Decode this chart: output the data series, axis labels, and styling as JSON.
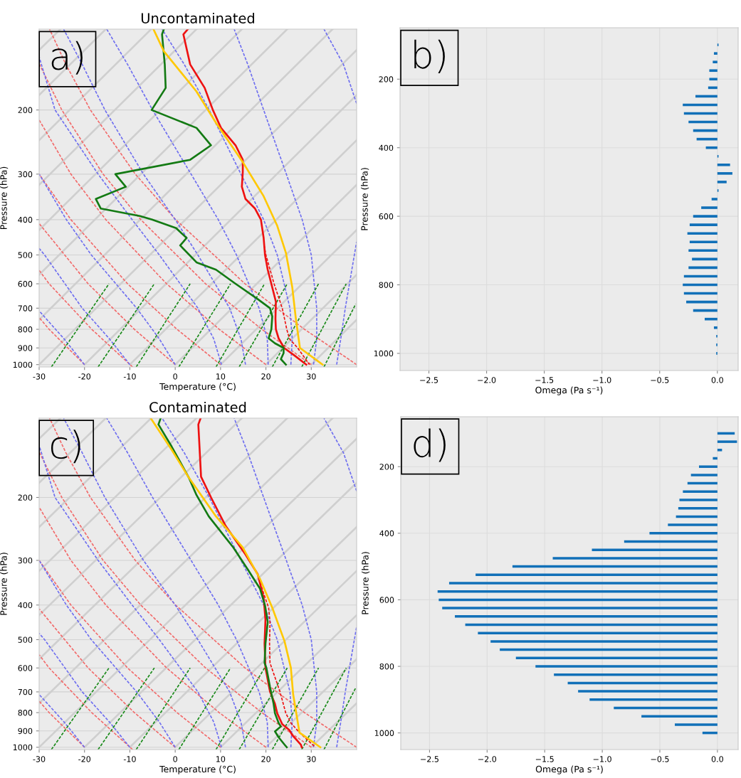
{
  "chart_data": [
    {
      "type": "line",
      "title": "Uncontaminated",
      "xlabel": "Temperature (°C)",
      "ylabel": "Pressure (hPa)",
      "annotations": [
        "a)"
      ],
      "log": "y",
      "xlim": [
        -30,
        40
      ],
      "ylim": [
        1015,
        120
      ],
      "xticks": [
        -30,
        -20,
        -10,
        0,
        10,
        20,
        30
      ],
      "yticks": [
        200,
        300,
        400,
        500,
        600,
        700,
        800,
        900,
        1000
      ],
      "grid": "y",
      "marker": "none",
      "series": [
        {
          "color": "#cfcfcf",
          "line_style": "solid",
          "x": [
            -30,
            -25.3
          ],
          "values": [
            137,
            120
          ]
        },
        {
          "color": "#cfcfcf",
          "line_style": "solid",
          "x": [
            -30,
            -15.3
          ],
          "values": [
            182,
            120
          ]
        },
        {
          "color": "#cfcfcf",
          "line_style": "solid",
          "x": [
            -30,
            -5.3
          ],
          "values": [
            242,
            120
          ]
        },
        {
          "color": "#cfcfcf",
          "line_style": "solid",
          "x": [
            -30,
            4.7
          ],
          "values": [
            321,
            120
          ]
        },
        {
          "color": "#cfcfcf",
          "line_style": "solid",
          "x": [
            -30,
            14.7
          ],
          "values": [
            427,
            120
          ]
        },
        {
          "color": "#cfcfcf",
          "line_style": "solid",
          "x": [
            -30,
            24.7
          ],
          "values": [
            567,
            120
          ]
        },
        {
          "color": "#cfcfcf",
          "line_style": "solid",
          "x": [
            -30,
            34.7
          ],
          "values": [
            753,
            120
          ]
        },
        {
          "color": "#cfcfcf",
          "line_style": "solid",
          "x": [
            -30,
            40
          ],
          "values": [
            1000,
            137
          ]
        },
        {
          "color": "#cfcfcf",
          "line_style": "solid",
          "x": [
            -20,
            40
          ],
          "values": [
            1000,
            182
          ]
        },
        {
          "color": "#cfcfcf",
          "line_style": "solid",
          "x": [
            -10,
            40
          ],
          "values": [
            1000,
            242
          ]
        },
        {
          "color": "#cfcfcf",
          "line_style": "solid",
          "x": [
            0,
            40
          ],
          "values": [
            1000,
            321
          ]
        },
        {
          "color": "#cfcfcf",
          "line_style": "solid",
          "x": [
            10,
            40
          ],
          "values": [
            1000,
            427
          ]
        },
        {
          "color": "#cfcfcf",
          "line_style": "solid",
          "x": [
            20,
            40
          ],
          "values": [
            1000,
            567
          ]
        },
        {
          "color": "#cfcfcf",
          "line_style": "solid",
          "x": [
            30,
            40
          ],
          "values": [
            1000,
            753
          ]
        },
        {
          "color": "#f26b6b",
          "line_style": "dashed",
          "x": [
            -20,
            -27.8,
            -30
          ],
          "values": [
            1000,
            800,
            743
          ]
        },
        {
          "color": "#f26b6b",
          "line_style": "dashed",
          "x": [
            -9.4,
            -18.4,
            -27.8,
            -30
          ],
          "values": [
            1015,
            800,
            600,
            551
          ]
        },
        {
          "color": "#f26b6b",
          "line_style": "dashed",
          "x": [
            0,
            -9.0,
            -19.2,
            -30
          ],
          "values": [
            1000,
            800,
            600,
            410
          ]
        },
        {
          "color": "#f26b6b",
          "line_style": "dashed",
          "x": [
            10,
            0.4,
            -10.5,
            -23.0,
            -30
          ],
          "values": [
            1000,
            800,
            600,
            400,
            300
          ]
        },
        {
          "color": "#f26b6b",
          "line_style": "dashed",
          "x": [
            20,
            9.7,
            -1.9,
            -15.3,
            -23.0,
            -30
          ],
          "values": [
            1000,
            800,
            600,
            400,
            300,
            213
          ]
        },
        {
          "color": "#f26b6b",
          "line_style": "dashed",
          "x": [
            30,
            19.1,
            6.7,
            -7.6,
            -15.9,
            -25.0,
            -29.9
          ],
          "values": [
            1000,
            800,
            600,
            400,
            300,
            200,
            150
          ]
        },
        {
          "color": "#f26b6b",
          "line_style": "dashed",
          "x": [
            40,
            28.5,
            15.4,
            0.1,
            -8.8,
            -18.7,
            -24.1,
            -27.7
          ],
          "values": [
            1000,
            800,
            600,
            400,
            300,
            200,
            150,
            120
          ]
        },
        {
          "color": "#6f6ff0",
          "line_style": "dashed",
          "x": [
            -20,
            -24.5,
            -30
          ],
          "values": [
            1000,
            850,
            712
          ]
        },
        {
          "color": "#6f6ff0",
          "line_style": "dashed",
          "x": [
            -10,
            -14.5,
            -20.5,
            -28.8,
            -30
          ],
          "values": [
            1000,
            850,
            700,
            500,
            480
          ]
        },
        {
          "color": "#6f6ff0",
          "line_style": "dashed",
          "x": [
            0,
            -3.5,
            -8.5,
            -18.5,
            -24,
            -30
          ],
          "values": [
            1000,
            850,
            700,
            500,
            400,
            300
          ]
        },
        {
          "color": "#6f6ff0",
          "line_style": "dashed",
          "x": [
            10.2,
            8.5,
            5.0,
            -3.5,
            -9.5,
            -17.0,
            -26.5,
            -30
          ],
          "values": [
            1000,
            850,
            700,
            500,
            400,
            300,
            200,
            143
          ]
        },
        {
          "color": "#6f6ff0",
          "line_style": "dashed",
          "x": [
            15.5,
            14.5,
            12.0,
            5.0,
            0,
            -7.0,
            -15.5,
            -20.5,
            -24.6
          ],
          "values": [
            1000,
            850,
            700,
            500,
            400,
            300,
            200,
            150,
            120
          ]
        },
        {
          "color": "#6f6ff0",
          "line_style": "dashed",
          "x": [
            20.5,
            20.3,
            18.5,
            13.5,
            9.5,
            3.5,
            -5.0,
            -10.5,
            -15.1
          ],
          "values": [
            1000,
            850,
            700,
            500,
            400,
            300,
            200,
            150,
            120
          ]
        },
        {
          "color": "#6f6ff0",
          "line_style": "dashed",
          "x": [
            25.5,
            25.8,
            25.3,
            22.5,
            19.5,
            14.5,
            7.5,
            2.0,
            -2.9
          ],
          "values": [
            1000,
            850,
            700,
            500,
            400,
            300,
            200,
            150,
            120
          ]
        },
        {
          "color": "#6f6ff0",
          "line_style": "dashed",
          "x": [
            30.5,
            31.2,
            31.2,
            30.0,
            28.0,
            24.5,
            19.5,
            16.0,
            13.0
          ],
          "values": [
            1000,
            850,
            700,
            500,
            400,
            300,
            200,
            150,
            120
          ]
        },
        {
          "color": "#6f6ff0",
          "line_style": "dashed",
          "x": [
            35.6,
            36.5,
            37.5,
            39.5,
            40
          ],
          "values": [
            1000,
            850,
            700,
            500,
            460
          ]
        },
        {
          "color": "#6f6ff0",
          "line_style": "dashed",
          "x": [
            40,
            37.1,
            32.8
          ],
          "values": [
            192,
            150,
            120
          ]
        },
        {
          "color": "#1a8a1a",
          "line_style": "dashed",
          "x": [
            -27.3,
            -14.6
          ],
          "values": [
            1015,
            600
          ]
        },
        {
          "color": "#1a8a1a",
          "line_style": "dashed",
          "x": [
            -17.0,
            -4.6
          ],
          "values": [
            1015,
            600
          ]
        },
        {
          "color": "#1a8a1a",
          "line_style": "dashed",
          "x": [
            -8.6,
            3.3
          ],
          "values": [
            1015,
            600
          ]
        },
        {
          "color": "#1a8a1a",
          "line_style": "dashed",
          "x": [
            0.8,
            12.2
          ],
          "values": [
            1015,
            600
          ]
        },
        {
          "color": "#1a8a1a",
          "line_style": "dashed",
          "x": [
            9.0,
            19.7
          ],
          "values": [
            1015,
            600
          ]
        },
        {
          "color": "#1a8a1a",
          "line_style": "dashed",
          "x": [
            14.1,
            24.7
          ],
          "values": [
            1015,
            600
          ]
        },
        {
          "color": "#1a8a1a",
          "line_style": "dashed",
          "x": [
            21.4,
            31.6
          ],
          "values": [
            1015,
            600
          ]
        },
        {
          "color": "#1a8a1a",
          "line_style": "dashed",
          "x": [
            27.9,
            37.7
          ],
          "values": [
            1015,
            600
          ]
        },
        {
          "color": "#1a8a1a",
          "line_style": "dashed",
          "x": [
            32.8,
            39.8
          ],
          "values": [
            1015,
            682
          ]
        },
        {
          "color": "#ee1111",
          "line_style": "dashed",
          "x": [
            19.6,
            20.0,
            21.8,
            23.6,
            24.6,
            25.2,
            27.0,
            29.6
          ],
          "values": [
            470,
            500,
            600,
            700,
            800,
            850,
            900,
            1000
          ]
        },
        {
          "color": "#ee1111",
          "line_style": "solid",
          "x": [
            2.8,
            1.8,
            3.3,
            6.5,
            8.3,
            10.1,
            13.3,
            14.9,
            14.9,
            14.7,
            15.5,
            17.6,
            18.9,
            19.5,
            19.8,
            20.4,
            21.2,
            22.2,
            22.1,
            22.2,
            22.8,
            24.0,
            26.3,
            28.9
          ],
          "values": [
            120,
            124,
            150,
            174,
            200,
            224,
            250,
            274,
            296,
            325,
            351,
            373,
            400,
            449,
            500,
            549,
            600,
            672,
            748,
            800,
            847,
            900,
            944,
            1000
          ]
        },
        {
          "color": "#137a13",
          "line_style": "solid",
          "x": [
            -2.5,
            -2.9,
            -2.3,
            -2.1,
            -5.2,
            4.7,
            7.9,
            3.3,
            -13.2,
            -10.9,
            -17.5,
            -16.4,
            -7.8,
            -5.1,
            0.2,
            2.5,
            1.1,
            4.7,
            9.0,
            13.3,
            18.2,
            20.9,
            21.4,
            21.2,
            20.6,
            22.0,
            23.9,
            23.9,
            23.3,
            24.4
          ],
          "values": [
            120,
            124,
            150,
            174,
            200,
            224,
            250,
            274,
            300,
            325,
            351,
            373,
            391,
            400,
            422,
            449,
            471,
            524,
            549,
            600,
            661,
            700,
            737,
            800,
            847,
            874,
            900,
            930,
            966,
            1000
          ]
        },
        {
          "color": "#ffc800",
          "line_style": "solid",
          "x": [
            -4.8,
            -2.5,
            4.7,
            9.0,
            14.9,
            19.5,
            22.5,
            24.4,
            25.8,
            26.6,
            27.5,
            32.5
          ],
          "values": [
            120,
            138,
            178,
            217,
            278,
            345,
            416,
            493,
            612,
            748,
            900,
            1000
          ]
        }
      ]
    },
    {
      "type": "bar",
      "orientation": "horizontal",
      "xlabel": "Omega (Pa s⁻¹)",
      "ylabel": "Pressure (hPa)",
      "annotations": [
        "b)"
      ],
      "grid": true,
      "color": "#1170b8",
      "xlim": [
        -2.75,
        0.18
      ],
      "xticks": [
        {
          "value": -2.5,
          "label": "−2.5"
        },
        {
          "value": -2.0,
          "label": "−2.0"
        },
        {
          "value": -1.5,
          "label": "−1.5"
        },
        {
          "value": -1.0,
          "label": "−1.0"
        },
        {
          "value": -0.5,
          "label": "−0.5"
        },
        {
          "value": 0,
          "label": "0.0"
        }
      ],
      "categories": [
        null,
        null,
        null,
        null,
        "200",
        null,
        null,
        null,
        null,
        null,
        null,
        null,
        "400",
        null,
        null,
        null,
        null,
        null,
        null,
        null,
        "600",
        null,
        null,
        null,
        null,
        null,
        null,
        null,
        "800",
        null,
        null,
        null,
        null,
        null,
        null,
        null,
        "1000"
      ],
      "values": [
        0.01,
        -0.03,
        -0.04,
        -0.07,
        -0.07,
        -0.08,
        -0.19,
        -0.3,
        -0.29,
        -0.25,
        -0.21,
        -0.18,
        -0.1,
        0.01,
        0.11,
        0.13,
        0.08,
        0.01,
        -0.05,
        -0.14,
        -0.21,
        -0.24,
        -0.26,
        -0.24,
        -0.25,
        -0.22,
        -0.25,
        -0.29,
        -0.3,
        -0.29,
        -0.27,
        -0.21,
        -0.11,
        -0.03,
        -0.01,
        -0.01,
        -0.01
      ]
    },
    {
      "type": "line",
      "title": "Contaminated",
      "xlabel": "Temperature (°C)",
      "ylabel": "Pressure (hPa)",
      "annotations": [
        "c)"
      ],
      "log": "y",
      "xlim": [
        -30,
        40
      ],
      "ylim": [
        1015,
        120
      ],
      "xticks": [
        -30,
        -20,
        -10,
        0,
        10,
        20,
        30
      ],
      "yticks": [
        200,
        300,
        400,
        500,
        600,
        700,
        800,
        900,
        1000
      ],
      "grid": "y",
      "marker": "none",
      "series": [
        {
          "color": "#cfcfcf",
          "line_style": "solid",
          "x": [
            -30,
            -25.3
          ],
          "values": [
            137,
            120
          ]
        },
        {
          "color": "#cfcfcf",
          "line_style": "solid",
          "x": [
            -30,
            -15.3
          ],
          "values": [
            182,
            120
          ]
        },
        {
          "color": "#cfcfcf",
          "line_style": "solid",
          "x": [
            -30,
            -5.3
          ],
          "values": [
            242,
            120
          ]
        },
        {
          "color": "#cfcfcf",
          "line_style": "solid",
          "x": [
            -30,
            4.7
          ],
          "values": [
            321,
            120
          ]
        },
        {
          "color": "#cfcfcf",
          "line_style": "solid",
          "x": [
            -30,
            14.7
          ],
          "values": [
            427,
            120
          ]
        },
        {
          "color": "#cfcfcf",
          "line_style": "solid",
          "x": [
            -30,
            24.7
          ],
          "values": [
            567,
            120
          ]
        },
        {
          "color": "#cfcfcf",
          "line_style": "solid",
          "x": [
            -30,
            34.7
          ],
          "values": [
            753,
            120
          ]
        },
        {
          "color": "#cfcfcf",
          "line_style": "solid",
          "x": [
            -30,
            40
          ],
          "values": [
            1000,
            137
          ]
        },
        {
          "color": "#cfcfcf",
          "line_style": "solid",
          "x": [
            -20,
            40
          ],
          "values": [
            1000,
            182
          ]
        },
        {
          "color": "#cfcfcf",
          "line_style": "solid",
          "x": [
            -10,
            40
          ],
          "values": [
            1000,
            242
          ]
        },
        {
          "color": "#cfcfcf",
          "line_style": "solid",
          "x": [
            0,
            40
          ],
          "values": [
            1000,
            321
          ]
        },
        {
          "color": "#cfcfcf",
          "line_style": "solid",
          "x": [
            10,
            40
          ],
          "values": [
            1000,
            427
          ]
        },
        {
          "color": "#cfcfcf",
          "line_style": "solid",
          "x": [
            20,
            40
          ],
          "values": [
            1000,
            567
          ]
        },
        {
          "color": "#cfcfcf",
          "line_style": "solid",
          "x": [
            30,
            40
          ],
          "values": [
            1000,
            753
          ]
        },
        {
          "color": "#f26b6b",
          "line_style": "dashed",
          "x": [
            -20,
            -27.8,
            -30
          ],
          "values": [
            1000,
            800,
            743
          ]
        },
        {
          "color": "#f26b6b",
          "line_style": "dashed",
          "x": [
            -9.4,
            -18.4,
            -27.8,
            -30
          ],
          "values": [
            1015,
            800,
            600,
            551
          ]
        },
        {
          "color": "#f26b6b",
          "line_style": "dashed",
          "x": [
            0,
            -9.0,
            -19.2,
            -30
          ],
          "values": [
            1000,
            800,
            600,
            410
          ]
        },
        {
          "color": "#f26b6b",
          "line_style": "dashed",
          "x": [
            10,
            0.4,
            -10.5,
            -23.0,
            -30
          ],
          "values": [
            1000,
            800,
            600,
            400,
            300
          ]
        },
        {
          "color": "#f26b6b",
          "line_style": "dashed",
          "x": [
            20,
            9.7,
            -1.9,
            -15.3,
            -23.0,
            -30
          ],
          "values": [
            1000,
            800,
            600,
            400,
            300,
            213
          ]
        },
        {
          "color": "#f26b6b",
          "line_style": "dashed",
          "x": [
            30,
            19.1,
            6.7,
            -7.6,
            -15.9,
            -25.0,
            -29.9
          ],
          "values": [
            1000,
            800,
            600,
            400,
            300,
            200,
            150
          ]
        },
        {
          "color": "#f26b6b",
          "line_style": "dashed",
          "x": [
            40,
            28.5,
            15.4,
            0.1,
            -8.8,
            -18.7,
            -24.1,
            -27.7
          ],
          "values": [
            1000,
            800,
            600,
            400,
            300,
            200,
            150,
            120
          ]
        },
        {
          "color": "#6f6ff0",
          "line_style": "dashed",
          "x": [
            -20,
            -24.5,
            -30
          ],
          "values": [
            1000,
            850,
            712
          ]
        },
        {
          "color": "#6f6ff0",
          "line_style": "dashed",
          "x": [
            -10,
            -14.5,
            -20.5,
            -28.8,
            -30
          ],
          "values": [
            1000,
            850,
            700,
            500,
            480
          ]
        },
        {
          "color": "#6f6ff0",
          "line_style": "dashed",
          "x": [
            0,
            -3.5,
            -8.5,
            -18.5,
            -24,
            -30
          ],
          "values": [
            1000,
            850,
            700,
            500,
            400,
            300
          ]
        },
        {
          "color": "#6f6ff0",
          "line_style": "dashed",
          "x": [
            10.2,
            8.5,
            5.0,
            -3.5,
            -9.5,
            -17.0,
            -26.5,
            -30
          ],
          "values": [
            1000,
            850,
            700,
            500,
            400,
            300,
            200,
            143
          ]
        },
        {
          "color": "#6f6ff0",
          "line_style": "dashed",
          "x": [
            15.5,
            14.5,
            12.0,
            5.0,
            0,
            -7.0,
            -15.5,
            -20.5,
            -24.6
          ],
          "values": [
            1000,
            850,
            700,
            500,
            400,
            300,
            200,
            150,
            120
          ]
        },
        {
          "color": "#6f6ff0",
          "line_style": "dashed",
          "x": [
            20.5,
            20.3,
            18.5,
            13.5,
            9.5,
            3.5,
            -5.0,
            -10.5,
            -15.1
          ],
          "values": [
            1000,
            850,
            700,
            500,
            400,
            300,
            200,
            150,
            120
          ]
        },
        {
          "color": "#6f6ff0",
          "line_style": "dashed",
          "x": [
            25.5,
            25.8,
            25.3,
            22.5,
            19.5,
            14.5,
            7.5,
            2.0,
            -2.9
          ],
          "values": [
            1000,
            850,
            700,
            500,
            400,
            300,
            200,
            150,
            120
          ]
        },
        {
          "color": "#6f6ff0",
          "line_style": "dashed",
          "x": [
            30.5,
            31.2,
            31.2,
            30.0,
            28.0,
            24.5,
            19.5,
            16.0,
            13.0
          ],
          "values": [
            1000,
            850,
            700,
            500,
            400,
            300,
            200,
            150,
            120
          ]
        },
        {
          "color": "#6f6ff0",
          "line_style": "dashed",
          "x": [
            35.6,
            36.5,
            37.5,
            39.5,
            40
          ],
          "values": [
            1000,
            850,
            700,
            500,
            460
          ]
        },
        {
          "color": "#6f6ff0",
          "line_style": "dashed",
          "x": [
            40,
            37.1,
            32.8
          ],
          "values": [
            192,
            150,
            120
          ]
        },
        {
          "color": "#1a8a1a",
          "line_style": "dashed",
          "x": [
            -27.3,
            -14.6
          ],
          "values": [
            1015,
            600
          ]
        },
        {
          "color": "#1a8a1a",
          "line_style": "dashed",
          "x": [
            -17.0,
            -4.6
          ],
          "values": [
            1015,
            600
          ]
        },
        {
          "color": "#1a8a1a",
          "line_style": "dashed",
          "x": [
            -8.6,
            3.3
          ],
          "values": [
            1015,
            600
          ]
        },
        {
          "color": "#1a8a1a",
          "line_style": "dashed",
          "x": [
            0.8,
            12.2
          ],
          "values": [
            1015,
            600
          ]
        },
        {
          "color": "#1a8a1a",
          "line_style": "dashed",
          "x": [
            9.0,
            19.7
          ],
          "values": [
            1015,
            600
          ]
        },
        {
          "color": "#1a8a1a",
          "line_style": "dashed",
          "x": [
            14.1,
            24.7
          ],
          "values": [
            1015,
            600
          ]
        },
        {
          "color": "#1a8a1a",
          "line_style": "dashed",
          "x": [
            21.4,
            31.6
          ],
          "values": [
            1015,
            600
          ]
        },
        {
          "color": "#1a8a1a",
          "line_style": "dashed",
          "x": [
            27.9,
            37.7
          ],
          "values": [
            1015,
            600
          ]
        },
        {
          "color": "#1a8a1a",
          "line_style": "dashed",
          "x": [
            32.8,
            39.8
          ],
          "values": [
            1015,
            682
          ]
        },
        {
          "color": "#ee1111",
          "line_style": "dashed",
          "x": [
            18.2,
            19.3,
            20.6,
            20.9,
            20.8,
            20.9,
            23.1,
            24.4,
            25.5,
            27.4,
            30.9
          ],
          "values": [
            328,
            365,
            407,
            446,
            513,
            581,
            699,
            804,
            855,
            910,
            1000
          ]
        },
        {
          "color": "#ee1111",
          "line_style": "solid",
          "x": [
            5.6,
            5.1,
            5.7,
            7.9,
            11.1,
            15.5,
            18.2,
            19.5,
            19.9,
            19.7,
            19.9,
            20.9,
            22.0,
            22.5,
            23.6,
            25.2,
            25.8,
            27.7,
            27.9
          ],
          "values": [
            120,
            125,
            175,
            200,
            240,
            289,
            328,
            382,
            440,
            513,
            599,
            699,
            756,
            804,
            862,
            896,
            924,
            983,
            1000
          ]
        },
        {
          "color": "#137a13",
          "line_style": "solid",
          "x": [
            -3.2,
            -3.7,
            -0.8,
            3.0,
            4.7,
            7.4,
            12.8,
            16.0,
            18.7,
            19.8,
            20.4,
            19.9,
            19.7,
            20.1,
            20.9,
            21.7,
            22.0,
            22.8,
            23.3,
            22.0,
            22.8,
            24.1,
            24.6
          ],
          "values": [
            120,
            125,
            144,
            176,
            197,
            226,
            276,
            318,
            360,
            401,
            446,
            513,
            581,
            599,
            678,
            756,
            804,
            855,
            875,
            903,
            938,
            983,
            1000
          ]
        },
        {
          "color": "#ffc800",
          "line_style": "solid",
          "x": [
            -5.4,
            -0.8,
            3.0,
            9.0,
            14.9,
            18.7,
            21.4,
            24.1,
            25.5,
            26.0,
            27.4,
            32.0
          ],
          "values": [
            120,
            147,
            176,
            226,
            276,
            338,
            407,
            505,
            599,
            710,
            910,
            1000
          ]
        }
      ]
    },
    {
      "type": "bar",
      "orientation": "horizontal",
      "xlabel": "Omega (Pa s⁻¹)",
      "ylabel": "Pressure (hPa)",
      "annotations": [
        "d)"
      ],
      "grid": true,
      "color": "#1170b8",
      "xlim": [
        -2.75,
        0.18
      ],
      "xticks": [
        {
          "value": -2.5,
          "label": "−2.5"
        },
        {
          "value": -2.0,
          "label": "−2.0"
        },
        {
          "value": -1.5,
          "label": "−1.5"
        },
        {
          "value": -1.0,
          "label": "−1.0"
        },
        {
          "value": -0.5,
          "label": "−0.5"
        },
        {
          "value": 0,
          "label": "0.0"
        }
      ],
      "categories": [
        null,
        null,
        null,
        null,
        "200",
        null,
        null,
        null,
        null,
        null,
        null,
        null,
        "400",
        null,
        null,
        null,
        null,
        null,
        null,
        null,
        "600",
        null,
        null,
        null,
        null,
        null,
        null,
        null,
        "800",
        null,
        null,
        null,
        null,
        null,
        null,
        null,
        "1000"
      ],
      "values": [
        0.15,
        0.17,
        0.04,
        -0.04,
        -0.16,
        -0.23,
        -0.26,
        -0.3,
        -0.33,
        -0.34,
        -0.36,
        -0.43,
        -0.59,
        -0.81,
        -1.09,
        -1.43,
        -1.78,
        -2.1,
        -2.33,
        -2.43,
        -2.42,
        -2.39,
        -2.28,
        -2.19,
        -2.08,
        -1.97,
        -1.89,
        -1.75,
        -1.58,
        -1.42,
        -1.3,
        -1.21,
        -1.11,
        -0.9,
        -0.66,
        -0.37,
        -0.13
      ]
    }
  ]
}
